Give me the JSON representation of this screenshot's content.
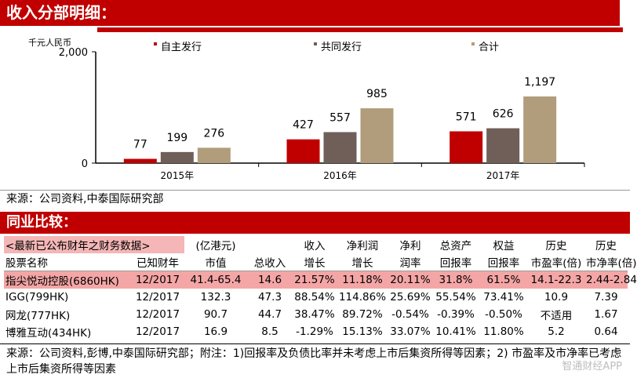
{
  "section1": {
    "title": "收入分部明细："
  },
  "chart_data": {
    "type": "bar",
    "ylabel": "千元人民币",
    "ylim": [
      0,
      2000
    ],
    "yticks": [
      "0",
      "2,000"
    ],
    "categories": [
      "2015年",
      "2016年",
      "2017年"
    ],
    "series": [
      {
        "name": "自主发行",
        "values": [
          77,
          427,
          571
        ],
        "labels": [
          "77",
          "427",
          "571"
        ],
        "color": "#c00000"
      },
      {
        "name": "共同发行",
        "values": [
          199,
          557,
          626
        ],
        "labels": [
          "199",
          "557",
          "626"
        ],
        "color": "#6f5f58"
      },
      {
        "name": "合计",
        "values": [
          276,
          985,
          1197
        ],
        "labels": [
          "276",
          "985",
          "1,197"
        ],
        "color": "#b19d7b"
      }
    ],
    "legend": "top"
  },
  "source1": "来源：公司资料,中泰国际研究部",
  "section2": {
    "title": "同业比较："
  },
  "table": {
    "note": "<最新已公布财年之财务数据>",
    "header1": [
      "",
      "",
      "(亿港元)",
      "",
      "收入",
      "净利润",
      "净利",
      "总资产",
      "权益",
      "历史",
      "历史"
    ],
    "header2": [
      "股票名称",
      "已知财年",
      "市值",
      "总收入",
      "增长",
      "增长",
      "润率",
      "回报率",
      "回报率",
      "市盈率(倍)",
      "市净率(倍)"
    ],
    "rows": [
      [
        "指尖悦动控股(6860HK)",
        "12/2017",
        "41.4-65.4",
        "14.6",
        "21.57%",
        "11.18%",
        "20.11%",
        "31.8%",
        "61.5%",
        "14.1-22.3",
        "2.44-2.84"
      ],
      [
        "IGG(799HK)",
        "12/2017",
        "132.3",
        "47.3",
        "88.54%",
        "114.86%",
        "25.69%",
        "55.54%",
        "73.41%",
        "10.9",
        "7.39"
      ],
      [
        "网龙(777HK)",
        "12/2017",
        "90.7",
        "44.7",
        "38.47%",
        "89.72%",
        "-0.54%",
        "-0.39%",
        "-0.50%",
        "不适用",
        "1.67"
      ],
      [
        "博雅互动(434HK)",
        "12/2017",
        "16.9",
        "8.5",
        "-1.29%",
        "15.13%",
        "33.07%",
        "10.41%",
        "11.80%",
        "5.2",
        "0.64"
      ]
    ],
    "highlight_color": "#f4a6a6"
  },
  "footnote": "来源：公司资料,彭博,中泰国际研究部；附注：1)回报率及负债比率并未考虑上市后集资所得等因素；2) 市盈率及市净率已考虑上市后集资所得等因素",
  "watermark": "智通财经APP"
}
